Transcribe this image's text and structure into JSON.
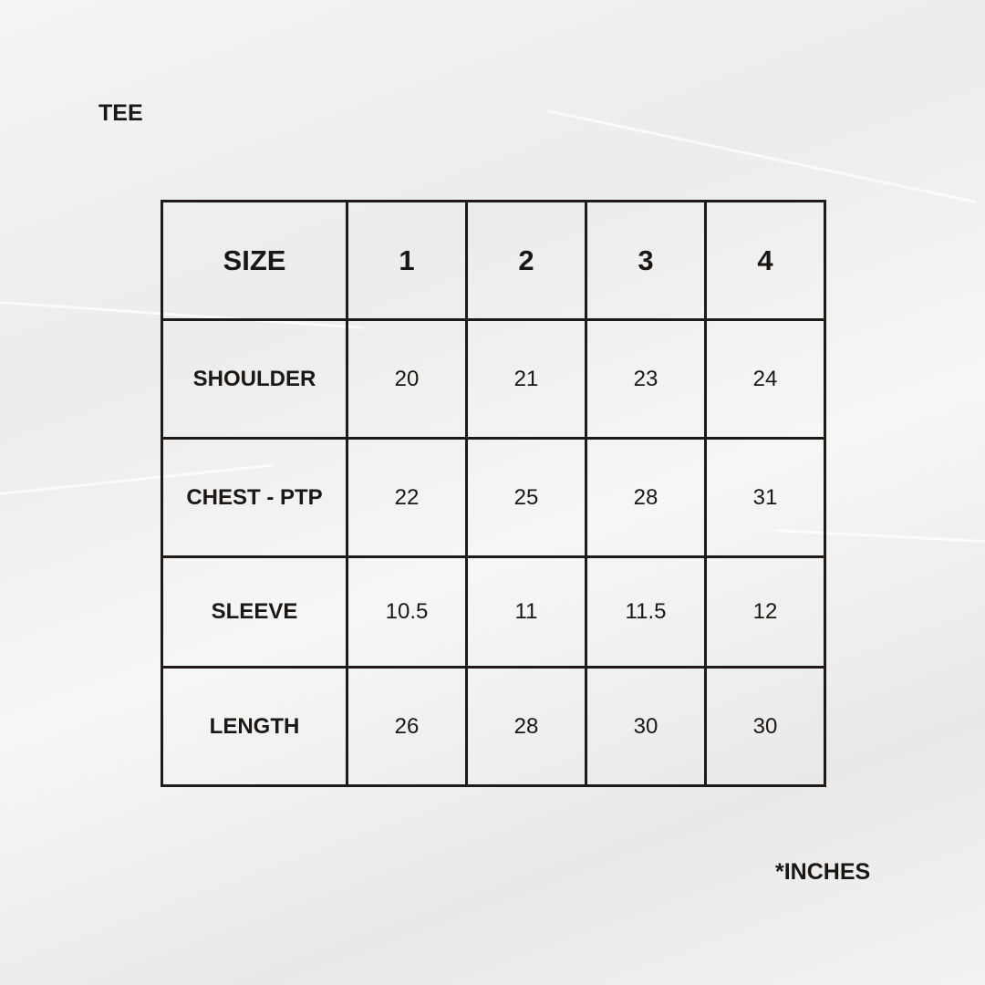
{
  "title": "TEE",
  "unit_note": "*INCHES",
  "table": {
    "header": [
      "SIZE",
      "1",
      "2",
      "3",
      "4"
    ],
    "rows": [
      {
        "label": "SHOULDER",
        "values": [
          "20",
          "21",
          "23",
          "24"
        ]
      },
      {
        "label": "CHEST - PTP",
        "values": [
          "22",
          "25",
          "28",
          "31"
        ]
      },
      {
        "label": "SLEEVE",
        "values": [
          "10.5",
          "11",
          "11.5",
          "12"
        ]
      },
      {
        "label": "LENGTH",
        "values": [
          "26",
          "28",
          "30",
          "30"
        ]
      }
    ]
  }
}
